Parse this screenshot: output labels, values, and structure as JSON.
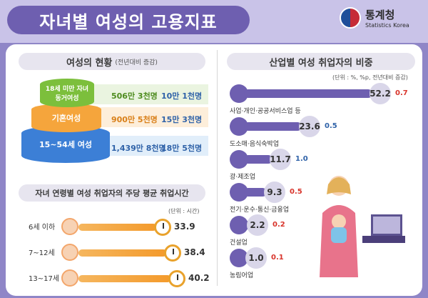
{
  "title": "자녀별 여성의 고용지표",
  "logo": {
    "name_ko": "통계청",
    "name_en": "Statistics Korea"
  },
  "left": {
    "status_title": "여성의 현황",
    "status_sub": "(전년대비 증감)",
    "tiers": [
      {
        "label": "18세 미만 자녀 동거여성",
        "value": "506만 3천명",
        "change": "10만 1천명",
        "dir": "down"
      },
      {
        "label": "기혼여성",
        "value": "900만 5천명",
        "change": "15만 3천명",
        "dir": "down"
      },
      {
        "label": "15~54세 여성",
        "value": "1,439만 8천명",
        "change": "18만 5천명",
        "dir": "down"
      }
    ],
    "hours_title": "자녀 연령별 여성 취업자의 주당 평균 취업시간",
    "hours_unit": "(단위 : 시간)",
    "ages": [
      {
        "label": "6세 이하",
        "hours": "33.9",
        "fraction": 0.843
      },
      {
        "label": "7~12세",
        "hours": "38.4",
        "fraction": 0.955
      },
      {
        "label": "13~17세",
        "hours": "40.2",
        "fraction": 1.0
      }
    ]
  },
  "right": {
    "title": "산업별 여성 취업자의 비중",
    "unit": "(단위 : %, %p, 전년대비 증감)",
    "industries": [
      {
        "label": "사업·개인·공공서비스업 등",
        "value": "52.2",
        "change": "0.7",
        "dir": "up",
        "fraction": 1.0
      },
      {
        "label": "도소매·음식숙박업",
        "value": "23.6",
        "change": "0.5",
        "dir": "down",
        "fraction": 0.452
      },
      {
        "label": "광·제조업",
        "value": "11.7",
        "change": "1.0",
        "dir": "down",
        "fraction": 0.224
      },
      {
        "label": "전기·운수·통신·금융업",
        "value": "9.3",
        "change": "0.5",
        "dir": "up",
        "fraction": 0.178
      },
      {
        "label": "건설업",
        "value": "2.2",
        "change": "0.2",
        "dir": "up",
        "fraction": 0.042
      },
      {
        "label": "농림어업",
        "value": "1.0",
        "change": "0.1",
        "dir": "up",
        "fraction": 0.019
      }
    ]
  },
  "colors": {
    "up": "#d8342b",
    "down": "#2f62a8",
    "accent": "#6e5fb0"
  }
}
